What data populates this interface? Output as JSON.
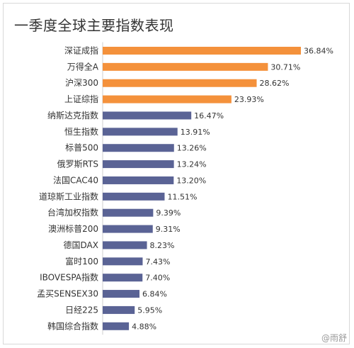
{
  "watermark": "@雨舒",
  "chart_data": {
    "type": "bar",
    "orientation": "horizontal",
    "title": "一季度全球主要指数表现",
    "unit": "%",
    "highlight_color": "#F4913B",
    "base_color": "#5A6395",
    "grid": false,
    "categories": [
      "深证成指",
      "万得全A",
      "沪深300",
      "上证综指",
      "纳斯达克指数",
      "恒生指数",
      "标普500",
      "俄罗斯RTS",
      "法国CAC40",
      "道琼斯工业指数",
      "台湾加权指数",
      "澳洲标普200",
      "德国DAX",
      "富时100",
      "IBOVESPA指数",
      "孟买SENSEX30",
      "日经225",
      "韩国综合指数"
    ],
    "values": [
      36.84,
      30.71,
      28.62,
      23.93,
      16.47,
      13.91,
      13.26,
      13.24,
      13.2,
      11.51,
      9.39,
      9.31,
      8.23,
      7.43,
      7.4,
      6.84,
      5.95,
      4.88
    ],
    "labels": [
      "36.84%",
      "30.71%",
      "28.62%",
      "23.93%",
      "16.47%",
      "13.91%",
      "13.26%",
      "13.24%",
      "13.20%",
      "11.51%",
      "9.39%",
      "9.31%",
      "8.23%",
      "7.43%",
      "7.40%",
      "6.84%",
      "5.95%",
      "4.88%"
    ],
    "highlight_count": 4
  }
}
